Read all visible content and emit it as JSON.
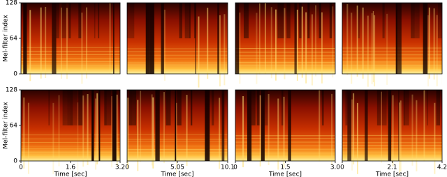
{
  "chart_data": [
    {
      "type": "spectrogram",
      "xlim": [
        0,
        3.2
      ],
      "ylim": [
        0,
        128
      ],
      "yticks": [
        0,
        64,
        128
      ],
      "ylabel": "Mel-filter index"
    },
    {
      "type": "spectrogram",
      "xlim": [
        0,
        10.1
      ],
      "ylim": [
        0,
        128
      ]
    },
    {
      "type": "spectrogram",
      "xlim": [
        0,
        3
      ],
      "ylim": [
        0,
        128
      ]
    },
    {
      "type": "spectrogram",
      "xlim": [
        0,
        4.2
      ],
      "ylim": [
        0,
        128
      ]
    },
    {
      "type": "spectrogram",
      "xlim": [
        0,
        3.2
      ],
      "ylim": [
        0,
        128
      ],
      "yticks": [
        0,
        64,
        128
      ],
      "ylabel": "Mel-filter index",
      "xticks": [
        0,
        1.6,
        3.2
      ],
      "xlabel": "Time [sec]"
    },
    {
      "type": "spectrogram",
      "xlim": [
        0,
        10.1
      ],
      "ylim": [
        0,
        128
      ],
      "xticks": [
        0,
        5.05,
        10.1
      ],
      "xlabel": "Time [sec]"
    },
    {
      "type": "spectrogram",
      "xlim": [
        0,
        3
      ],
      "ylim": [
        0,
        128
      ],
      "xticks": [
        0,
        1.5,
        {
          "value": 3,
          "label": "3.0"
        }
      ],
      "xlabel": "Time [sec]"
    },
    {
      "type": "spectrogram",
      "xlim": [
        0,
        4.2
      ],
      "ylim": [
        0,
        128
      ],
      "xticks": [
        0,
        2.1,
        4.2
      ],
      "xlabel": "Time [sec]"
    }
  ]
}
